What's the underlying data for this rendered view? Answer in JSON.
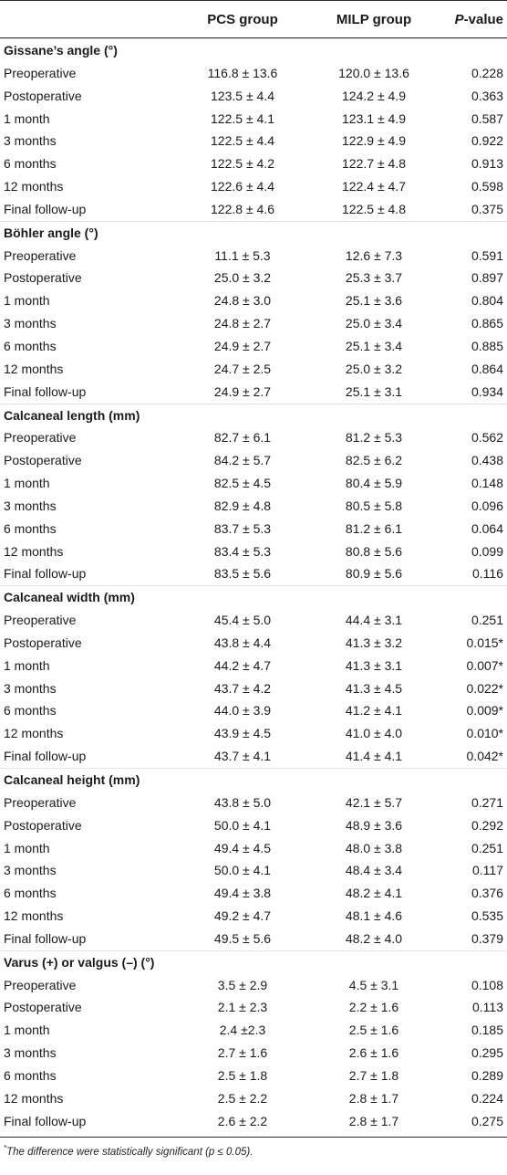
{
  "header": {
    "col_label": "",
    "col_pcs": "PCS group",
    "col_milp": "MILP group",
    "col_p_italic": "P",
    "col_p_rest": "-value"
  },
  "sections": [
    {
      "title": "Gissane’s angle (°)",
      "rows": [
        {
          "label": "Preoperative",
          "pcs": "116.8 ± 13.6",
          "milp": "120.0 ± 13.6",
          "p": "0.228"
        },
        {
          "label": "Postoperative",
          "pcs": "123.5 ± 4.4",
          "milp": "124.2 ± 4.9",
          "p": "0.363"
        },
        {
          "label": "1 month",
          "pcs": "122.5 ± 4.1",
          "milp": "123.1 ± 4.9",
          "p": "0.587"
        },
        {
          "label": "3 months",
          "pcs": "122.5 ± 4.4",
          "milp": "122.9 ± 4.9",
          "p": "0.922"
        },
        {
          "label": "6 months",
          "pcs": "122.5 ± 4.2",
          "milp": "122.7 ± 4.8",
          "p": "0.913"
        },
        {
          "label": "12 months",
          "pcs": "122.6 ± 4.4",
          "milp": "122.4 ± 4.7",
          "p": "0.598"
        },
        {
          "label": "Final follow-up",
          "pcs": "122.8 ± 4.6",
          "milp": "122.5 ± 4.8",
          "p": "0.375"
        }
      ]
    },
    {
      "title": "Böhler angle (°)",
      "rows": [
        {
          "label": "Preoperative",
          "pcs": "11.1 ± 5.3",
          "milp": "12.6 ± 7.3",
          "p": "0.591"
        },
        {
          "label": "Postoperative",
          "pcs": "25.0 ± 3.2",
          "milp": "25.3 ± 3.7",
          "p": "0.897"
        },
        {
          "label": "1 month",
          "pcs": "24.8 ± 3.0",
          "milp": "25.1 ± 3.6",
          "p": "0.804"
        },
        {
          "label": "3 months",
          "pcs": "24.8 ± 2.7",
          "milp": "25.0 ± 3.4",
          "p": "0.865"
        },
        {
          "label": "6 months",
          "pcs": "24.9 ± 2.7",
          "milp": "25.1 ± 3.4",
          "p": "0.885"
        },
        {
          "label": "12 months",
          "pcs": "24.7 ± 2.5",
          "milp": "25.0 ± 3.2",
          "p": "0.864"
        },
        {
          "label": "Final follow-up",
          "pcs": "24.9 ± 2.7",
          "milp": "25.1 ± 3.1",
          "p": "0.934"
        }
      ]
    },
    {
      "title": "Calcaneal length (mm)",
      "rows": [
        {
          "label": "Preoperative",
          "pcs": "82.7 ± 6.1",
          "milp": "81.2 ± 5.3",
          "p": "0.562"
        },
        {
          "label": "Postoperative",
          "pcs": "84.2 ± 5.7",
          "milp": "82.5 ± 6.2",
          "p": "0.438"
        },
        {
          "label": "1 month",
          "pcs": "82.5 ± 4.5",
          "milp": "80.4 ± 5.9",
          "p": "0.148"
        },
        {
          "label": "3 months",
          "pcs": "82.9 ± 4.8",
          "milp": "80.5 ± 5.8",
          "p": "0.096"
        },
        {
          "label": "6 months",
          "pcs": "83.7 ± 5.3",
          "milp": "81.2 ± 6.1",
          "p": "0.064"
        },
        {
          "label": "12 months",
          "pcs": "83.4 ± 5.3",
          "milp": "80.8 ± 5.6",
          "p": "0.099"
        },
        {
          "label": "Final follow-up",
          "pcs": "83.5 ± 5.6",
          "milp": "80.9 ± 5.6",
          "p": "0.116"
        }
      ]
    },
    {
      "title": "Calcaneal width (mm)",
      "rows": [
        {
          "label": "Preoperative",
          "pcs": "45.4 ± 5.0",
          "milp": "44.4 ± 3.1",
          "p": "0.251"
        },
        {
          "label": "Postoperative",
          "pcs": "43.8 ± 4.4",
          "milp": "41.3 ± 3.2",
          "p": "0.015*"
        },
        {
          "label": "1 month",
          "pcs": "44.2 ± 4.7",
          "milp": "41.3 ± 3.1",
          "p": "0.007*"
        },
        {
          "label": "3 months",
          "pcs": "43.7 ± 4.2",
          "milp": "41.3 ± 4.5",
          "p": "0.022*"
        },
        {
          "label": "6 months",
          "pcs": "44.0 ± 3.9",
          "milp": "41.2 ± 4.1",
          "p": "0.009*"
        },
        {
          "label": "12 months",
          "pcs": "43.9 ± 4.5",
          "milp": "41.0 ± 4.0",
          "p": "0.010*"
        },
        {
          "label": "Final follow-up",
          "pcs": "43.7 ± 4.1",
          "milp": "41.4 ± 4.1",
          "p": "0.042*"
        }
      ]
    },
    {
      "title": "Calcaneal height (mm)",
      "rows": [
        {
          "label": "Preoperative",
          "pcs": "43.8 ± 5.0",
          "milp": "42.1 ± 5.7",
          "p": "0.271"
        },
        {
          "label": "Postoperative",
          "pcs": "50.0 ± 4.1",
          "milp": "48.9 ± 3.6",
          "p": "0.292"
        },
        {
          "label": "1 month",
          "pcs": "49.4 ± 4.5",
          "milp": "48.0 ± 3.8",
          "p": "0.251"
        },
        {
          "label": "3 months",
          "pcs": "50.0 ± 4.1",
          "milp": "48.4 ± 3.4",
          "p": "0.117"
        },
        {
          "label": "6 months",
          "pcs": "49.4 ± 3.8",
          "milp": "48.2 ± 4.1",
          "p": "0.376"
        },
        {
          "label": "12 months",
          "pcs": "49.2 ± 4.7",
          "milp": "48.1 ± 4.6",
          "p": "0.535"
        },
        {
          "label": "Final follow-up",
          "pcs": "49.5 ± 5.6",
          "milp": "48.2 ± 4.0",
          "p": "0.379"
        }
      ]
    },
    {
      "title": "Varus (+) or valgus (–) (°)",
      "rows": [
        {
          "label": "Preoperative",
          "pcs": "3.5 ± 2.9",
          "milp": "4.5 ± 3.1",
          "p": "0.108"
        },
        {
          "label": "Postoperative",
          "pcs": "2.1 ± 2.3",
          "milp": "2.2 ± 1.6",
          "p": "0.113"
        },
        {
          "label": "1 month",
          "pcs": "2.4 ±2.3",
          "milp": "2.5 ± 1.6",
          "p": "0.185"
        },
        {
          "label": "3 months",
          "pcs": "2.7 ± 1.6",
          "milp": "2.6 ± 1.6",
          "p": "0.295"
        },
        {
          "label": "6 months",
          "pcs": "2.5 ± 1.8",
          "milp": "2.7 ± 1.8",
          "p": "0.289"
        },
        {
          "label": "12 months",
          "pcs": "2.5 ± 2.2",
          "milp": "2.8 ± 1.7",
          "p": "0.224"
        },
        {
          "label": "Final follow-up",
          "pcs": "2.6 ± 2.2",
          "milp": "2.8 ± 1.7",
          "p": "0.275"
        }
      ]
    }
  ],
  "footnote": {
    "marker": "*",
    "text": "The difference were statistically significant (p ≤ 0.05)."
  }
}
